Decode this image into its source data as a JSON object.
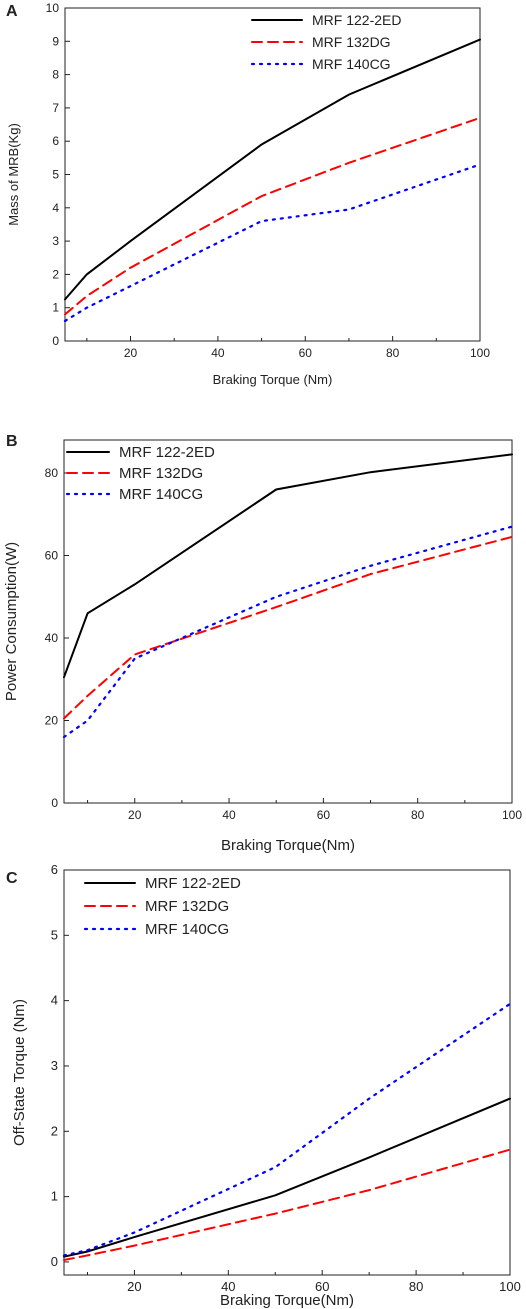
{
  "chart_data": [
    {
      "panel": "A",
      "type": "line",
      "xlabel": "Braking Torque (Nm)",
      "ylabel": "Mass of MRB(Kg)",
      "xlim": [
        5,
        100
      ],
      "ylim": [
        0,
        10
      ],
      "xticks": [
        "20",
        "40",
        "60",
        "80",
        "100"
      ],
      "yticks": [
        "0",
        "1",
        "2",
        "3",
        "4",
        "5",
        "6",
        "7",
        "8",
        "9",
        "10"
      ],
      "grid": false,
      "legend": "top-center",
      "series": [
        {
          "name": "MRF 122-2ED",
          "color": "#000000",
          "style": "solid",
          "x": [
            5,
            10,
            20,
            50,
            70,
            100
          ],
          "y": [
            1.25,
            2.0,
            3.0,
            5.9,
            7.4,
            9.05
          ]
        },
        {
          "name": "MRF 132DG",
          "color": "#ff0000",
          "style": "dashed",
          "x": [
            5,
            10,
            20,
            50,
            70,
            100
          ],
          "y": [
            0.8,
            1.35,
            2.2,
            4.35,
            5.35,
            6.7
          ]
        },
        {
          "name": "MRF 140CG",
          "color": "#0000ff",
          "style": "dotted",
          "x": [
            5,
            10,
            20,
            50,
            70,
            100
          ],
          "y": [
            0.6,
            1.0,
            1.65,
            3.6,
            3.95,
            5.3
          ]
        }
      ]
    },
    {
      "panel": "B",
      "type": "line",
      "xlabel": "Braking Torque(Nm)",
      "ylabel": "Power Consumption(W)",
      "xlim": [
        5,
        100
      ],
      "ylim": [
        0,
        88
      ],
      "xticks": [
        "20",
        "40",
        "60",
        "80",
        "100"
      ],
      "yticks": [
        "0",
        "20",
        "40",
        "60",
        "80"
      ],
      "grid": false,
      "legend": "top-left",
      "series": [
        {
          "name": "MRF 122-2ED",
          "color": "#000000",
          "style": "solid",
          "x": [
            5,
            10,
            20,
            50,
            70,
            100
          ],
          "y": [
            30.5,
            46,
            53,
            76,
            80.2,
            84.5
          ]
        },
        {
          "name": "MRF 132DG",
          "color": "#ff0000",
          "style": "dashed",
          "x": [
            5,
            10,
            20,
            50,
            70,
            100
          ],
          "y": [
            20.5,
            26,
            36,
            47.5,
            55.5,
            64.5
          ]
        },
        {
          "name": "MRF 140CG",
          "color": "#0000ff",
          "style": "dotted",
          "x": [
            5,
            10,
            20,
            50,
            70,
            100
          ],
          "y": [
            16,
            20,
            35,
            50,
            57.5,
            67
          ]
        }
      ]
    },
    {
      "panel": "C",
      "type": "line",
      "xlabel": "Braking Torque(Nm)",
      "ylabel": "Off-State Torque (Nm)",
      "xlim": [
        5,
        100
      ],
      "ylim": [
        -0.2,
        6
      ],
      "xticks": [
        "20",
        "40",
        "60",
        "80",
        "100"
      ],
      "yticks": [
        "0",
        "1",
        "2",
        "3",
        "4",
        "5",
        "6"
      ],
      "grid": false,
      "legend": "top-left",
      "series": [
        {
          "name": "MRF 122-2ED",
          "color": "#000000",
          "style": "solid",
          "x": [
            5,
            10,
            20,
            50,
            70,
            100
          ],
          "y": [
            0.08,
            0.16,
            0.38,
            1.02,
            1.6,
            2.5
          ]
        },
        {
          "name": "MRF 132DG",
          "color": "#ff0000",
          "style": "dashed",
          "x": [
            5,
            10,
            20,
            50,
            70,
            100
          ],
          "y": [
            0.03,
            0.1,
            0.25,
            0.74,
            1.1,
            1.72
          ]
        },
        {
          "name": "MRF 140CG",
          "color": "#0000ff",
          "style": "dotted",
          "x": [
            5,
            10,
            20,
            50,
            70,
            100
          ],
          "y": [
            0.1,
            0.18,
            0.45,
            1.45,
            2.5,
            3.95
          ]
        }
      ]
    }
  ]
}
